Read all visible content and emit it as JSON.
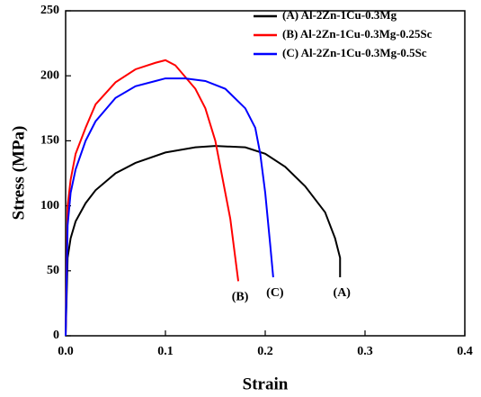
{
  "chart_data": {
    "type": "line",
    "xlabel": "Strain",
    "ylabel": "Stress (MPa)",
    "xlim": [
      0,
      0.4
    ],
    "ylim": [
      0,
      250
    ],
    "xticks": [
      {
        "value": 0,
        "label": "0.0"
      },
      0.1,
      0.2,
      0.3,
      0.4
    ],
    "yticks": [
      0,
      50,
      100,
      150,
      200,
      250
    ],
    "legend": "upper-right",
    "series": [
      {
        "name": "(A) Al-2Zn-1Cu-0.3Mg",
        "end_label": "(A)",
        "color": "#000000",
        "x": [
          0,
          0.002,
          0.005,
          0.01,
          0.02,
          0.03,
          0.05,
          0.07,
          0.1,
          0.13,
          0.15,
          0.18,
          0.2,
          0.22,
          0.24,
          0.26,
          0.27,
          0.275,
          0.275
        ],
        "values": [
          0,
          60,
          75,
          88,
          102,
          112,
          125,
          133,
          141,
          145,
          146,
          145,
          140,
          130,
          115,
          95,
          75,
          60,
          45
        ]
      },
      {
        "name": "(B) Al-2Zn-1Cu-0.3Mg-0.25Sc",
        "end_label": "(B)",
        "color": "#ff0000",
        "x": [
          0,
          0.002,
          0.005,
          0.01,
          0.02,
          0.03,
          0.05,
          0.07,
          0.09,
          0.1,
          0.11,
          0.13,
          0.14,
          0.15,
          0.155,
          0.16,
          0.165,
          0.17,
          0.173
        ],
        "values": [
          0,
          100,
          120,
          140,
          160,
          178,
          195,
          205,
          210,
          212,
          208,
          190,
          175,
          150,
          130,
          110,
          90,
          60,
          42
        ]
      },
      {
        "name": "(C) Al-2Zn-1Cu-0.3Mg-0.5Sc",
        "end_label": "(C)",
        "color": "#0000ff",
        "x": [
          0,
          0.002,
          0.005,
          0.01,
          0.02,
          0.03,
          0.05,
          0.07,
          0.09,
          0.1,
          0.12,
          0.14,
          0.16,
          0.18,
          0.19,
          0.195,
          0.2,
          0.205,
          0.208
        ],
        "values": [
          0,
          85,
          110,
          128,
          150,
          165,
          183,
          192,
          196,
          198,
          198,
          196,
          190,
          175,
          160,
          140,
          110,
          70,
          45
        ]
      }
    ]
  }
}
